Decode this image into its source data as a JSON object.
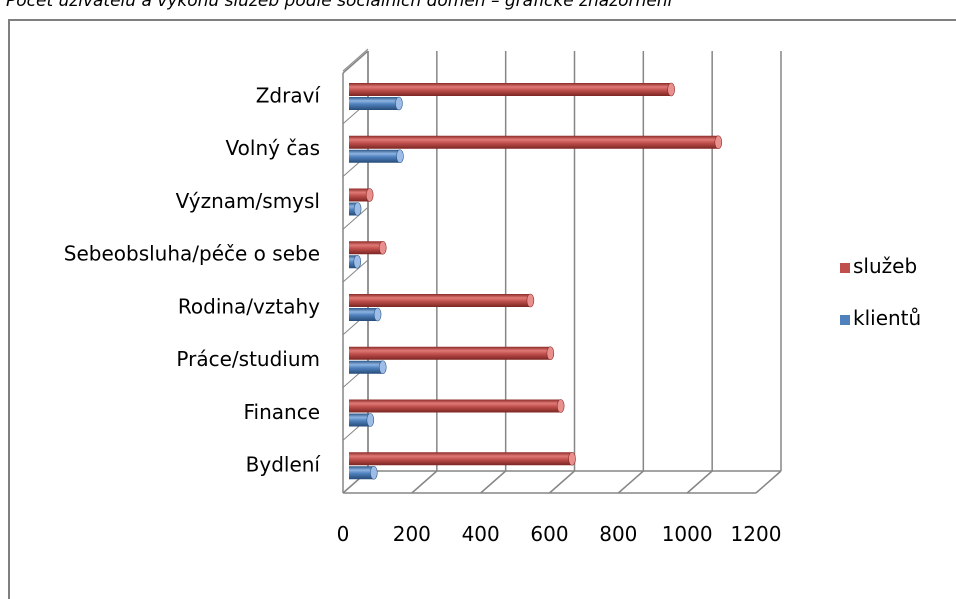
{
  "title": "Počet uživatelů a výkonů služeb podle sociálních domén – grafické znázornění",
  "chart_data": {
    "type": "bar",
    "orientation": "horizontal",
    "style": "3d-cylinder",
    "categories": [
      "Bydlení",
      "Finance",
      "Práce/studium",
      "Rodina/vztahy",
      "Sebeobsluha/péče o sebe",
      "Význam/smysl",
      "Volný čas",
      "Zdraví"
    ],
    "series": [
      {
        "name": "služeb",
        "color": "#c0504d",
        "values": [
          648,
          615,
          585,
          527,
          98,
          60,
          1073,
          936
        ]
      },
      {
        "name": "klientů",
        "color": "#4f81bd",
        "values": [
          72,
          62,
          98,
          83,
          24,
          25,
          148,
          145
        ]
      }
    ],
    "xlim": [
      0,
      1200
    ],
    "xticks": [
      0,
      200,
      400,
      600,
      800,
      1000,
      1200
    ],
    "grid": true,
    "legend": "right"
  }
}
